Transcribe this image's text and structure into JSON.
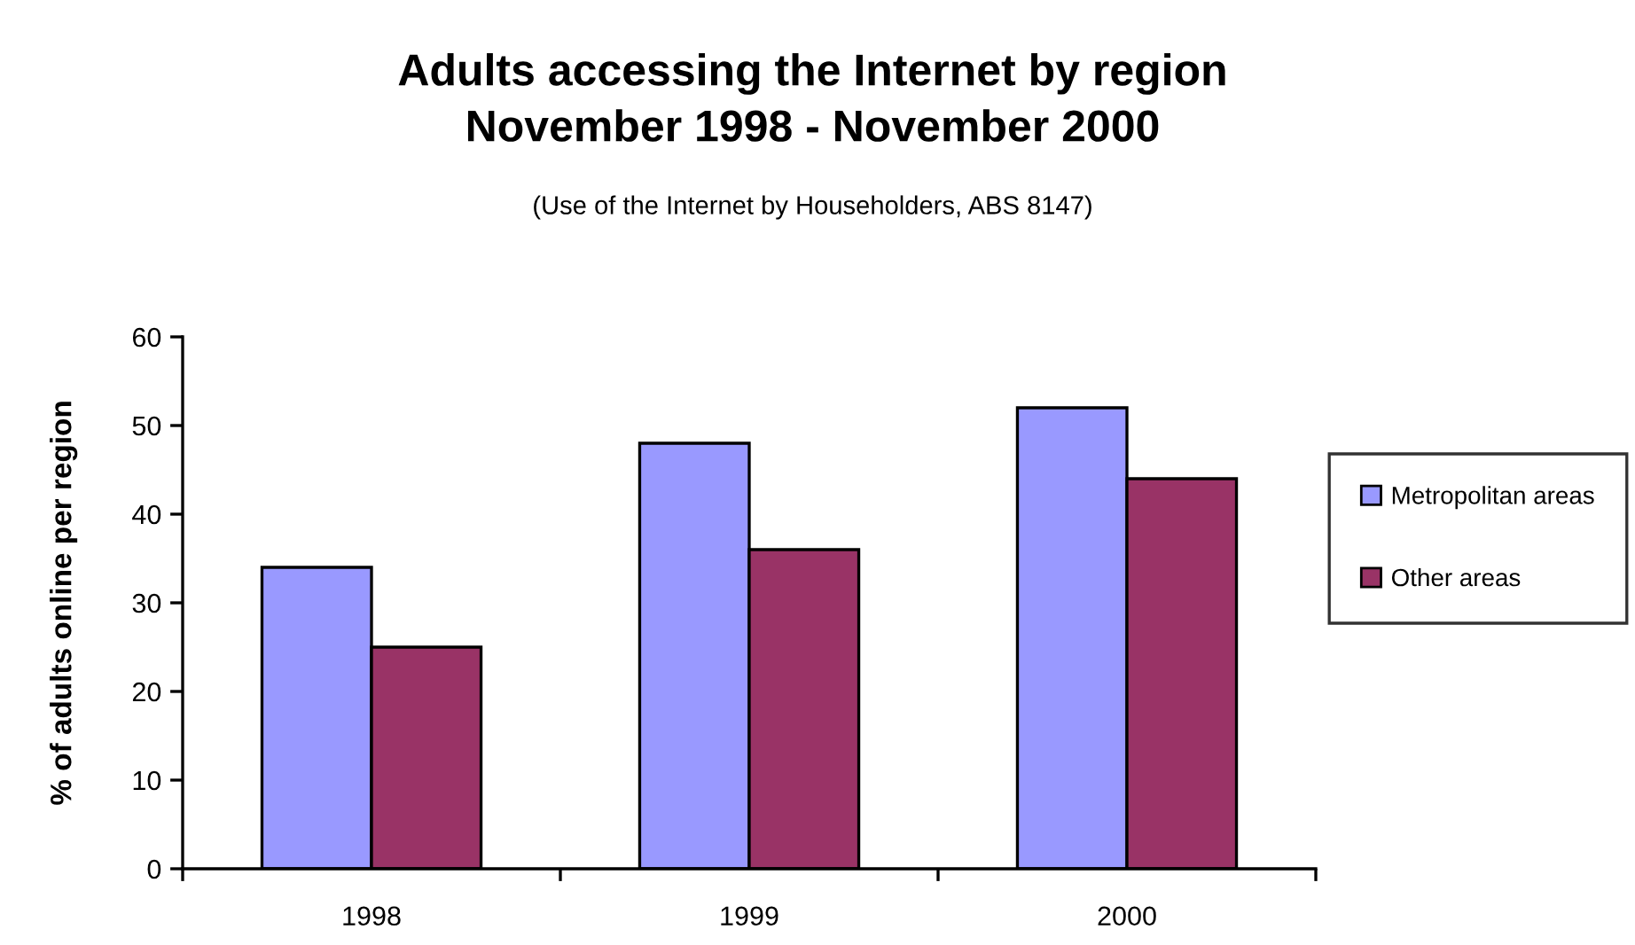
{
  "chart_data": {
    "type": "bar",
    "title": "Adults accessing the Internet by region\nNovember 1998 - November 2000",
    "subtitle": "(Use of the Internet by Householders, ABS 8147)",
    "ylabel": "% of adults online per region",
    "categories": [
      "1998",
      "1999",
      "2000"
    ],
    "series": [
      {
        "name": "Metropolitan areas",
        "color": "#9999ff",
        "values": [
          34,
          48,
          52
        ]
      },
      {
        "name": "Other areas",
        "color": "#993366",
        "values": [
          25,
          36,
          44
        ]
      }
    ],
    "ylim": [
      0,
      60
    ],
    "yticks": [
      0,
      10,
      20,
      30,
      40,
      50,
      60
    ],
    "legend": "right"
  }
}
